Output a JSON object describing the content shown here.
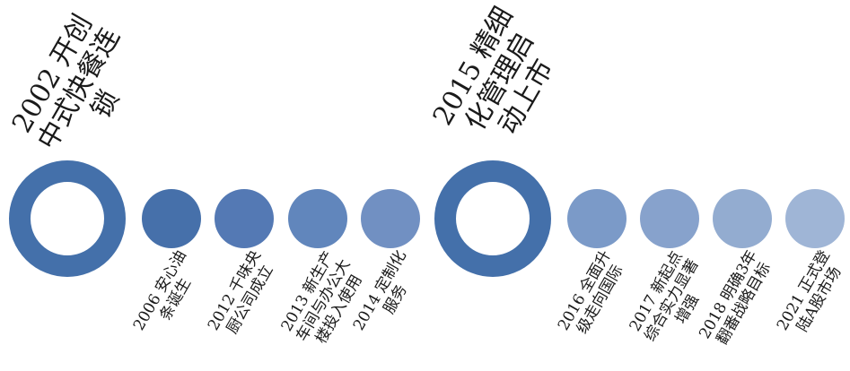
{
  "colors": {
    "ring": "#4470aa",
    "dots": [
      "#4670aa",
      "#5479b4",
      "#6186bc",
      "#7190c2",
      "#7b9ac8",
      "#87a2cc",
      "#93acd0",
      "#9fb5d6"
    ]
  },
  "milestones": [
    {
      "text": "2002 开创\n中式快餐连\n锁"
    },
    {
      "text": "2015 精细\n化管理启\n动上市"
    }
  ],
  "events": [
    {
      "text": "2006 安心油\n条诞生"
    },
    {
      "text": "2012 千味央\n厨公司成立"
    },
    {
      "text": "2013 新生产\n车间与办公大\n楼投入使用"
    },
    {
      "text": "2014 定制化\n服务"
    },
    {
      "text": "2016 全面升\n级走向国际"
    },
    {
      "text": "2017 新起点\n综合实力显著\n增强"
    },
    {
      "text": "2018 明确3年\n翻番战略目标"
    },
    {
      "text": "2021 正式登\n陆A股市场"
    }
  ]
}
